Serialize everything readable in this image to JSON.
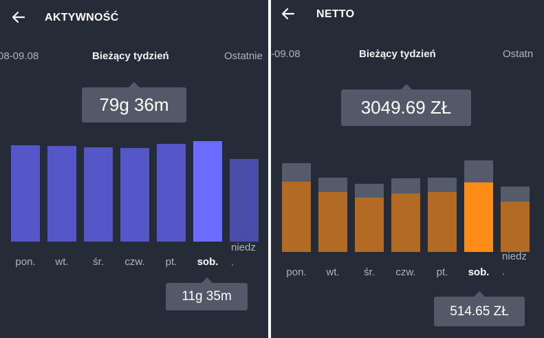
{
  "activity": {
    "title": "AKTYWNOŚĆ",
    "prev_period": "08-09.08",
    "current_period": "Bieżący tydzień",
    "next_period": "Ostatnie",
    "total": "79g 36m",
    "selected_value": "11g 35m",
    "colors": {
      "bar": "#5557c8",
      "bar_future": "#4a4ea8",
      "bar_selected": "#6b6bff"
    },
    "days": [
      {
        "label": "pon.",
        "level": 0.96,
        "selected": false
      },
      {
        "label": "wt.",
        "level": 0.95,
        "selected": false
      },
      {
        "label": "śr.",
        "level": 0.94,
        "selected": false
      },
      {
        "label": "czw.",
        "level": 0.93,
        "selected": false
      },
      {
        "label": "pt.",
        "level": 0.97,
        "selected": false
      },
      {
        "label": "sob.",
        "level": 1.0,
        "selected": true
      },
      {
        "label": "niedz\n.",
        "level": 0.82,
        "selected": false
      }
    ]
  },
  "netto": {
    "title": "NETTO",
    "prev_period": "-09.08",
    "current_period": "Bieżący tydzień",
    "next_period": "Ostatn",
    "total": "3049.69 ZŁ",
    "selected_value": "514.65 ZŁ",
    "colors": {
      "bar": "#b36a25",
      "bar_top": "#545c6b",
      "bar_selected": "#ff8c17"
    },
    "days": [
      {
        "label": "pon.",
        "level": 0.83,
        "top": 0.17,
        "selected": false
      },
      {
        "label": "wt.",
        "level": 0.7,
        "top": 0.14,
        "selected": false
      },
      {
        "label": "śr.",
        "level": 0.64,
        "top": 0.13,
        "selected": false
      },
      {
        "label": "czw.",
        "level": 0.69,
        "top": 0.14,
        "selected": false
      },
      {
        "label": "pt.",
        "level": 0.7,
        "top": 0.14,
        "selected": false
      },
      {
        "label": "sob.",
        "level": 0.86,
        "top": 0.21,
        "selected": true
      },
      {
        "label": "niedz\n.",
        "level": 0.61,
        "top": 0.14,
        "selected": false
      }
    ]
  }
}
